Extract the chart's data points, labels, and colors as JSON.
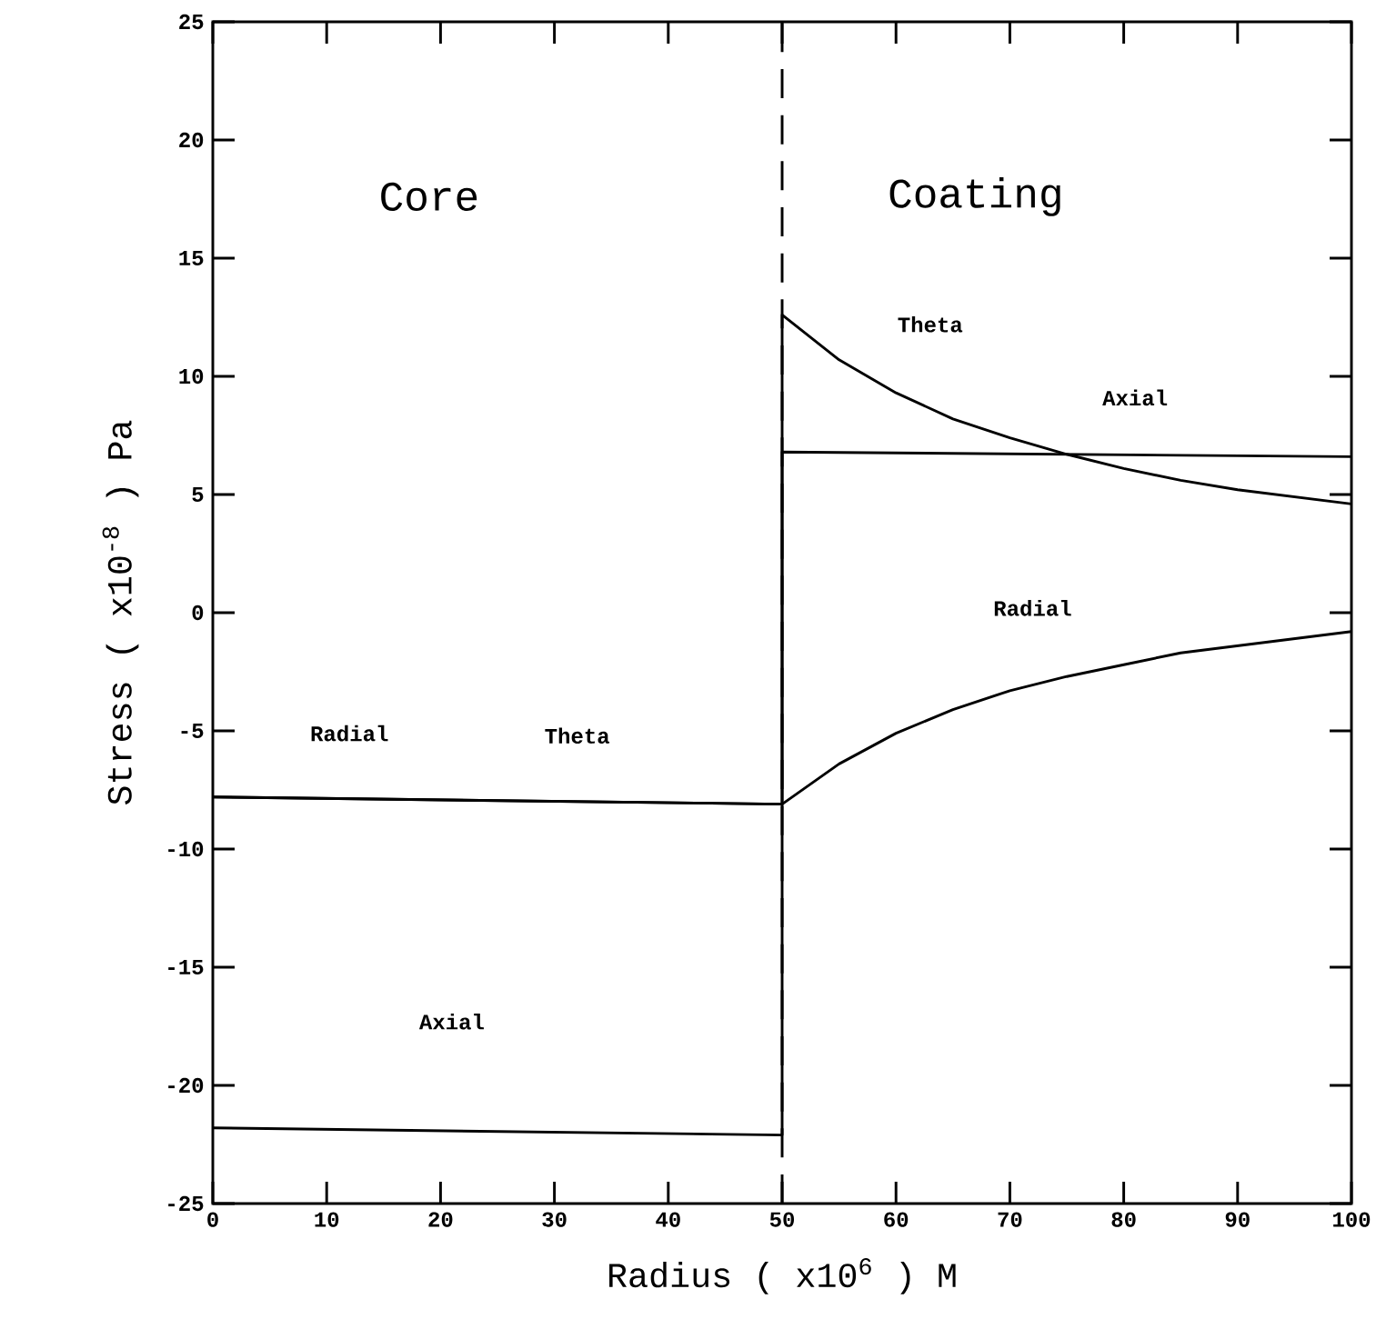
{
  "chart_data": {
    "type": "line",
    "xlabel": "Radius ( x10$^{6}$ ) M",
    "ylabel": "Stress ( x10$^{-8}$ ) Pa",
    "xlim": [
      0,
      100
    ],
    "ylim": [
      -25,
      25
    ],
    "xticks": [
      0,
      10,
      20,
      30,
      40,
      50,
      60,
      70,
      80,
      90,
      100
    ],
    "yticks": [
      -25,
      -20,
      -15,
      -10,
      -5,
      0,
      5,
      10,
      15,
      20,
      25
    ],
    "line_style": "solid",
    "series": [
      {
        "color": "#000000",
        "x": [
          0,
          50,
          55,
          60,
          65,
          70,
          75,
          80,
          85,
          90,
          95,
          100
        ],
        "values": [
          -7.8,
          -8.1,
          -6.4,
          -5.1,
          -4.1,
          -3.3,
          -2.7,
          -2.2,
          -1.7,
          -1.4,
          -1.1,
          -0.8
        ]
      },
      {
        "color": "#000000",
        "x": [
          0,
          50,
          50,
          55,
          60,
          65,
          70,
          75,
          80,
          85,
          90,
          95,
          100
        ],
        "values": [
          -7.8,
          -8.1,
          12.6,
          10.7,
          9.3,
          8.2,
          7.4,
          6.7,
          6.1,
          5.6,
          5.2,
          4.9,
          4.6
        ]
      },
      {
        "color": "#000000",
        "x": [
          0,
          50,
          50,
          100
        ],
        "values": [
          -21.8,
          -22.1,
          6.8,
          6.6
        ]
      }
    ],
    "ref_lines": [
      {
        "axis": "x",
        "value": 50,
        "line_style": "dashed",
        "color": "#000000"
      }
    ],
    "annotations": [
      "Core",
      "Coating",
      "Radial",
      "Theta",
      "Axial",
      "Theta",
      "Axial",
      "Radial"
    ]
  }
}
